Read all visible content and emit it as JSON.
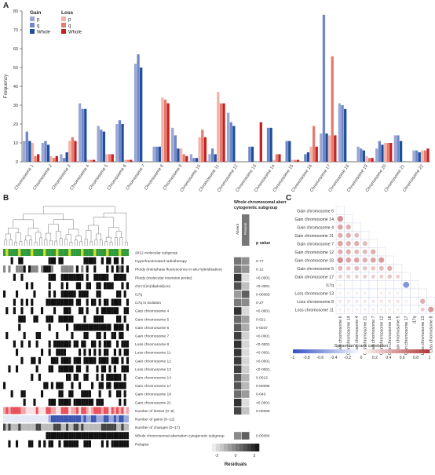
{
  "panels": {
    "a": "A",
    "b": "B",
    "c": "C"
  },
  "chart_data": [
    {
      "type": "bar",
      "panel": "A",
      "ylabel": "Frequency",
      "ylim": [
        0,
        80
      ],
      "yticks": [
        0,
        10,
        20,
        30,
        40,
        50,
        60,
        70,
        80
      ],
      "legend": {
        "gain_title": "Gain",
        "loss_title": "Loss",
        "items": [
          {
            "label": "p",
            "group": "gain"
          },
          {
            "label": "q",
            "group": "gain"
          },
          {
            "label": "Whole",
            "group": "gain"
          },
          {
            "label": "p",
            "group": "loss"
          },
          {
            "label": "q",
            "group": "loss"
          },
          {
            "label": "Whole",
            "group": "loss"
          }
        ]
      },
      "categories": [
        "Chromosome 1",
        "Chromosome 2",
        "Chromosome 3",
        "Chromosome 4",
        "Chromosome 5",
        "Chromosome 6",
        "Chromosome 7",
        "Chromosome 8",
        "Chromosome 9",
        "Chromosome 10",
        "Chromosome 11",
        "Chromosome 12",
        "Chromosome 13",
        "Chromosome 14",
        "Chromosome 15",
        "Chromosome 16",
        "Chromosome 17",
        "Chromosome 18",
        "Chromosome 19",
        "Chromosome 20",
        "Chromosome 21",
        "Chromosome 22"
      ],
      "series": [
        {
          "name": "Gain p",
          "color": "#9aa7d4",
          "values": [
            11,
            10,
            4,
            31,
            19,
            20,
            52,
            8,
            18,
            4,
            4,
            26,
            0,
            0,
            0,
            0,
            15,
            31,
            8,
            7,
            14,
            6
          ]
        },
        {
          "name": "Gain q",
          "color": "#6f86c8",
          "values": [
            16,
            11,
            2,
            28,
            17,
            22,
            57,
            8,
            14,
            2,
            7,
            21,
            8,
            18,
            11,
            4,
            78,
            30,
            7,
            11,
            14,
            6
          ]
        },
        {
          "name": "Gain whole",
          "color": "#1e4f9c",
          "values": [
            11,
            9,
            5,
            28,
            16,
            20,
            50,
            8,
            7,
            2,
            4,
            19,
            8,
            18,
            11,
            5,
            15,
            28,
            6,
            9,
            11,
            5
          ]
        },
        {
          "name": "Loss p",
          "color": "#f3b3a8",
          "values": [
            10,
            3,
            11,
            1,
            4,
            1,
            0,
            34,
            7,
            13,
            37,
            0,
            0,
            1,
            1,
            8,
            14,
            0,
            3,
            10,
            0,
            6
          ]
        },
        {
          "name": "Loss q",
          "color": "#e57d6e",
          "values": [
            3,
            2,
            13,
            1,
            4,
            1,
            0,
            33,
            4,
            17,
            31,
            0,
            0,
            4,
            1,
            19,
            56,
            0,
            2,
            10,
            0,
            6
          ]
        },
        {
          "name": "Loss whole",
          "color": "#c8201e",
          "values": [
            4,
            3,
            11,
            1,
            4,
            1,
            0,
            31,
            3,
            13,
            31,
            0,
            21,
            4,
            1,
            8,
            14,
            0,
            2,
            10,
            0,
            7
          ]
        }
      ]
    },
    {
      "type": "heatmap",
      "panel": "B",
      "col_header": "Whole chromosomal aberration cytogenetic subgroup",
      "col_labels": [
        "Absent",
        "Present"
      ],
      "pvalue_header": "p value",
      "rows": [
        {
          "label": "2012 molecular subgroup",
          "p": ""
        },
        {
          "label": "Hyperfractionated radiotherapy",
          "p": "0·77"
        },
        {
          "label": "Ploidy (interphase fluorescence in-situ hybridisation)",
          "p": "0·12"
        },
        {
          "label": "Ploidy (molecular inversion probe)",
          "p": "<0·0001"
        },
        {
          "label": "chr17(im)/diploid(cm)",
          "p": "<0·0001"
        },
        {
          "label": "i17q",
          "p": "0·00065"
        },
        {
          "label": "i17q in isolation",
          "p": "0·27"
        },
        {
          "label": "Gain chromosome 4",
          "p": "<0·0001"
        },
        {
          "label": "Gain chromosome 5",
          "p": "0·021"
        },
        {
          "label": "Gain chromosome 6",
          "p": "0·0037"
        },
        {
          "label": "Gain chromosome 7",
          "p": "<0·0001"
        },
        {
          "label": "Loss chromosome 8",
          "p": "<0·0001"
        },
        {
          "label": "Loss chromosome 11",
          "p": "<0·0001"
        },
        {
          "label": "Gain chromosome 12",
          "p": "<0·0001"
        },
        {
          "label": "Loss chromosome 13",
          "p": "<0·0001"
        },
        {
          "label": "Gain chromosome 14",
          "p": "0·0012"
        },
        {
          "label": "Gain chromosome 17",
          "p": "0·00086"
        },
        {
          "label": "Gain chromosome 18",
          "p": "0·040"
        },
        {
          "label": "Gain chromosome 21",
          "p": "<0·0001"
        },
        {
          "label": "Number of losses (0–8)",
          "p": "0·00059"
        },
        {
          "label": "Number of gains (0–12)",
          "p": ""
        },
        {
          "label": "Number of changes (0–17)",
          "p": ""
        },
        {
          "label": "Whole chromosomal aberration cytogenetic subgroup",
          "p": "0·00084"
        },
        {
          "label": "Relapse",
          "p": ""
        }
      ],
      "residual_cells": [
        [
          0.5,
          -0.5
        ],
        [
          0.3,
          -0.3
        ],
        [
          0.4,
          -0.4
        ],
        [
          1.8,
          -2.2
        ],
        [
          1.2,
          -1.5
        ],
        [
          -0.6,
          0.8
        ],
        [
          0.2,
          -0.2
        ],
        [
          1.9,
          -2.1
        ],
        [
          0.6,
          -0.7
        ],
        [
          0.9,
          -1.0
        ],
        [
          1.6,
          -1.9
        ],
        [
          1.9,
          -2.0
        ],
        [
          1.8,
          -2.1
        ],
        [
          1.7,
          -2.0
        ],
        [
          1.6,
          -1.8
        ],
        [
          1.0,
          -1.2
        ],
        [
          1.1,
          -1.3
        ],
        [
          0.5,
          -0.6
        ],
        [
          1.9,
          -2.2
        ],
        [
          1.4,
          -1.6
        ],
        [
          0,
          0
        ],
        [
          0,
          0
        ],
        [
          -0.2,
          0.8
        ],
        [
          0,
          0
        ]
      ],
      "residuals_legend": {
        "title": "Residuals",
        "ticks": [
          -2,
          0,
          2
        ]
      }
    },
    {
      "type": "heatmap",
      "panel": "C",
      "labels": [
        "Gain chromosome 6",
        "Gain chromosome 14",
        "Gain chromosome 4",
        "Gain chromosome 21",
        "Gain chromosome 7",
        "Gain chromosome 12",
        "Gain chromosome 18",
        "Gain chromosome 5",
        "Gain chromosome 17",
        "i17q",
        "Loss chromosome 13",
        "Loss chromosome 8",
        "Loss chromosome 11"
      ],
      "correlations": [
        [],
        [
          0.55
        ],
        [
          0.45,
          0.4
        ],
        [
          0.4,
          0.4,
          0.35
        ],
        [
          0.45,
          0.4,
          0.4,
          0.35
        ],
        [
          0.4,
          0.4,
          0.35,
          0.35,
          0.4
        ],
        [
          0.55,
          0.45,
          0.45,
          0.4,
          0.45,
          0.5
        ],
        [
          0.35,
          0.3,
          0.35,
          0.3,
          0.3,
          0.35,
          0.4
        ],
        [
          0.25,
          0.25,
          0.25,
          0.25,
          0.25,
          0.25,
          0.3,
          0.25
        ],
        [
          0.1,
          0.05,
          0.05,
          0.05,
          0.05,
          0.05,
          0.05,
          0.05,
          -0.6
        ],
        [
          0.1,
          0.1,
          0.1,
          0.1,
          0.05,
          0.1,
          0.1,
          0.1,
          0.05,
          0.05
        ],
        [
          0.15,
          0.15,
          0.15,
          0.15,
          0.15,
          0.15,
          0.15,
          0.15,
          0.1,
          0.05,
          0.4
        ],
        [
          0.1,
          0.1,
          0.1,
          0.1,
          0.1,
          0.1,
          0.1,
          0.1,
          0.05,
          0.05,
          0.25,
          0.5
        ]
      ],
      "colorbar_title": "Spearman's rank correlation",
      "colorbar_ticks": [
        -1,
        -0.8,
        -0.6,
        -0.4,
        -0.2,
        0,
        0.2,
        0.4,
        0.6,
        0.8,
        1
      ]
    }
  ]
}
